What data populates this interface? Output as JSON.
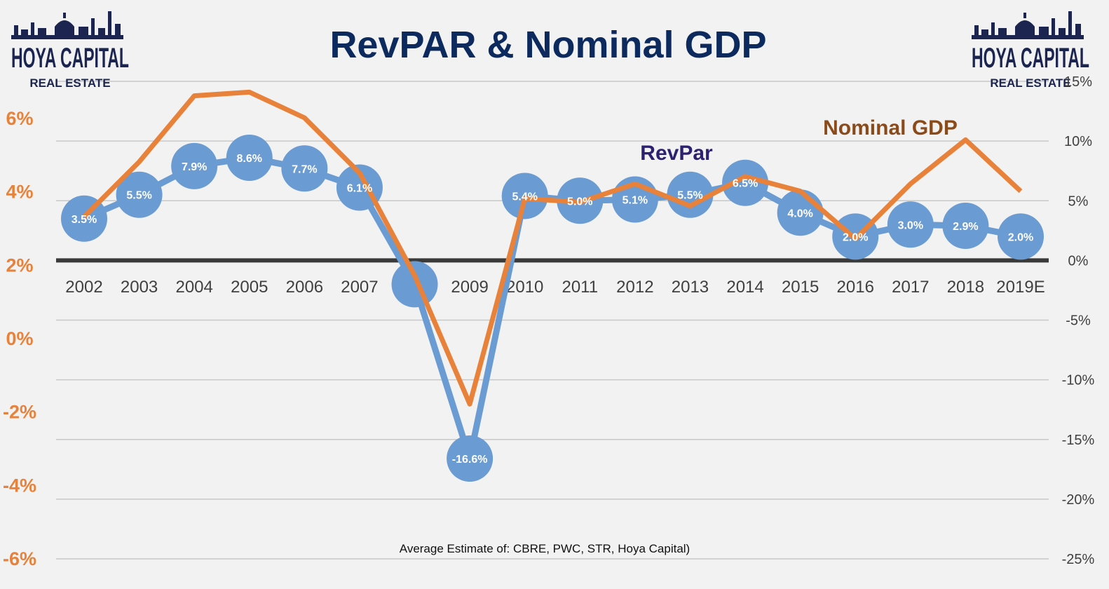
{
  "logo": {
    "line1": "HOYA CAPITAL",
    "line2": "REAL ESTATE"
  },
  "chart_data": {
    "type": "line",
    "title": "RevPAR & Nominal GDP",
    "categories": [
      "2002",
      "2003",
      "2004",
      "2005",
      "2006",
      "2007",
      "2008",
      "2009",
      "2010",
      "2011",
      "2012",
      "2013",
      "2014",
      "2015",
      "2016",
      "2017",
      "2018",
      "2019E"
    ],
    "series": [
      {
        "name": "RevPar",
        "axis": "right",
        "color": "#6a9bd2",
        "values": [
          3.5,
          5.5,
          7.9,
          8.6,
          7.7,
          6.1,
          -2.0,
          -16.6,
          5.4,
          5.0,
          5.1,
          5.5,
          6.5,
          4.0,
          2.0,
          3.0,
          2.9,
          2.0
        ],
        "data_labels": [
          "3.5%",
          "5.5%",
          "7.9%",
          "8.6%",
          "7.7%",
          "6.1%",
          "",
          "-16.6%",
          "5.4%",
          "5.0%",
          "5.1%",
          "5.5%",
          "6.5%",
          "4.0%",
          "2.0%",
          "3.0%",
          "2.9%",
          "2.0%"
        ]
      },
      {
        "name": "Nominal GDP",
        "axis": "left",
        "color": "#e8823b",
        "values": [
          3.3,
          4.8,
          6.6,
          6.7,
          6.0,
          4.5,
          1.7,
          -1.8,
          3.8,
          3.7,
          4.2,
          3.6,
          4.4,
          4.0,
          2.7,
          4.2,
          5.4,
          4.0
        ]
      }
    ],
    "left_axis": {
      "ticks": [
        "6%",
        "4%",
        "2%",
        "0%",
        "-2%",
        "-4%",
        "-6%"
      ],
      "tick_values": [
        6,
        4,
        2,
        0,
        -2,
        -4,
        -6
      ],
      "range": [
        -6,
        7.2
      ]
    },
    "right_axis": {
      "ticks": [
        "15%",
        "10%",
        "5%",
        "0%",
        "-5%",
        "-10%",
        "-15%",
        "-20%",
        "-25%"
      ],
      "tick_values": [
        15,
        10,
        5,
        0,
        -5,
        -10,
        -15,
        -20,
        -25
      ],
      "range": [
        -25,
        15
      ]
    },
    "annotations": {
      "revpar_label": "RevPar",
      "gdp_label": "Nominal GDP"
    },
    "source": "Average Estimate of: CBRE, PWC, STR, Hoya Capital)",
    "grid": true,
    "colors": {
      "revpar": "#6a9bd2",
      "gdp": "#e8823b",
      "title": "#0d2a5e",
      "zero_line": "#3a3a3a"
    }
  }
}
